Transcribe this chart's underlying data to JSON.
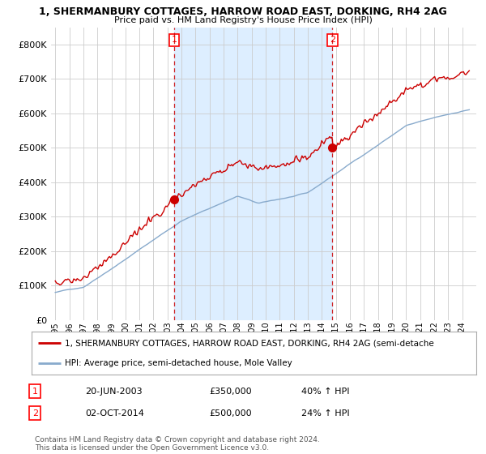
{
  "title": "1, SHERMANBURY COTTAGES, HARROW ROAD EAST, DORKING, RH4 2AG",
  "subtitle": "Price paid vs. HM Land Registry's House Price Index (HPI)",
  "ylim": [
    0,
    850000
  ],
  "yticks": [
    0,
    100000,
    200000,
    300000,
    400000,
    500000,
    600000,
    700000,
    800000
  ],
  "ytick_labels": [
    "£0",
    "£100K",
    "£200K",
    "£300K",
    "£400K",
    "£500K",
    "£600K",
    "£700K",
    "£800K"
  ],
  "line_color_red": "#cc0000",
  "line_color_blue": "#88aacc",
  "shade_color": "#ddeeff",
  "grid_color": "#cccccc",
  "background_color": "#ffffff",
  "sale1_date": "20-JUN-2003",
  "sale1_price": 350000,
  "sale1_hpi": "40%",
  "sale2_date": "02-OCT-2014",
  "sale2_price": 500000,
  "sale2_hpi": "24%",
  "legend_label_red": "1, SHERMANBURY COTTAGES, HARROW ROAD EAST, DORKING, RH4 2AG (semi-detache",
  "legend_label_blue": "HPI: Average price, semi-detached house, Mole Valley",
  "footer": "Contains HM Land Registry data © Crown copyright and database right 2024.\nThis data is licensed under the Open Government Licence v3.0.",
  "x_start_year": 1995,
  "x_end_year": 2024,
  "vline1_year": 2003.47,
  "vline2_year": 2014.75,
  "marker1_label": "1",
  "marker2_label": "2",
  "sale1_red_value": 350000,
  "sale2_red_value": 500000
}
